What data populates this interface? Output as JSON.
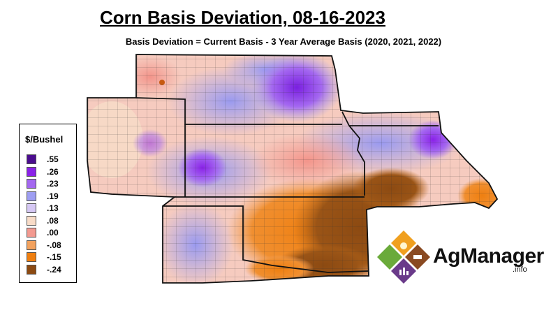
{
  "title": "Corn Basis Deviation, 08-16-2023",
  "subtitle": "Basis Deviation = Current Basis - 3 Year Average Basis (2020, 2021, 2022)",
  "legend": {
    "title": "$/Bushel",
    "items": [
      {
        "label": ".55",
        "color": "#4b0d8f"
      },
      {
        "label": ".26",
        "color": "#8a22e8"
      },
      {
        "label": ".23",
        "color": "#a468f0"
      },
      {
        "label": ".19",
        "color": "#9e9ef2"
      },
      {
        "label": ".13",
        "color": "#d6c8f4"
      },
      {
        "label": ".08",
        "color": "#f8dcc8"
      },
      {
        "label": ".00",
        "color": "#f39a90"
      },
      {
        "label": "-.08",
        "color": "#f3a25e"
      },
      {
        "label": "-.15",
        "color": "#ef7f10"
      },
      {
        "label": "-.24",
        "color": "#8c4a12"
      }
    ]
  },
  "logo": {
    "name": "AgManager",
    "suffix": ".info"
  }
}
